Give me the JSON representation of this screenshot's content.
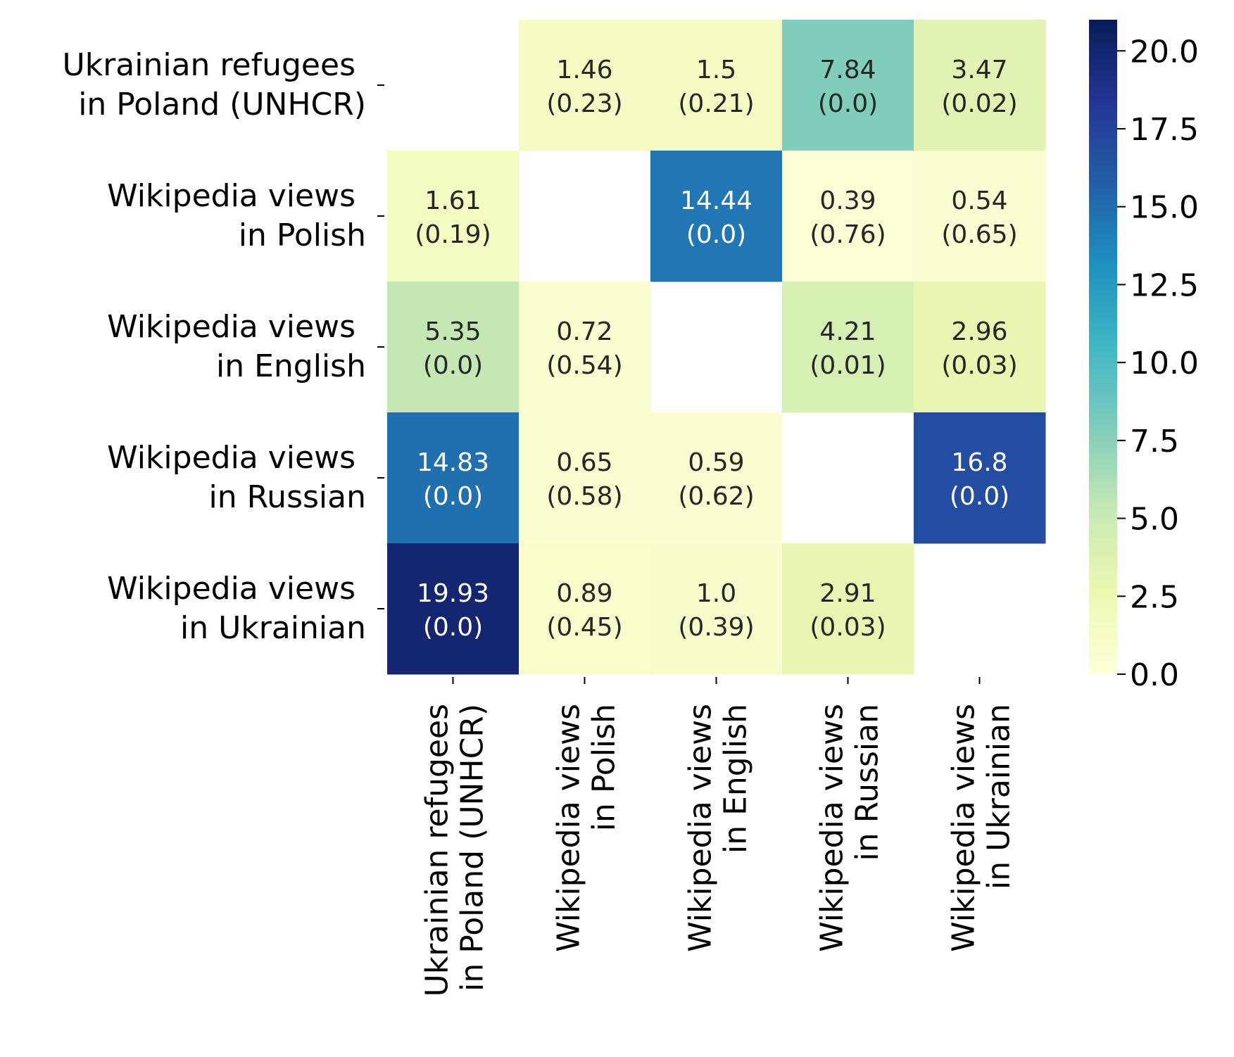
{
  "chart_data": {
    "type": "heatmap",
    "title": "",
    "xlabel": "",
    "ylabel": "",
    "rows": [
      [
        "Ukrainian refugees",
        "in Poland (UNHCR)"
      ],
      [
        "Wikipedia views",
        "in Polish"
      ],
      [
        "Wikipedia views",
        "in English"
      ],
      [
        "Wikipedia views",
        "in Russian"
      ],
      [
        "Wikipedia views",
        "in Ukrainian"
      ]
    ],
    "columns": [
      [
        "Ukrainian refugees",
        "in Poland (UNHCR)"
      ],
      [
        "Wikipedia views",
        "in Polish"
      ],
      [
        "Wikipedia views",
        "in English"
      ],
      [
        "Wikipedia views",
        "in Russian"
      ],
      [
        "Wikipedia views",
        "in Ukrainian"
      ]
    ],
    "values": [
      [
        null,
        1.46,
        1.5,
        7.84,
        3.47
      ],
      [
        1.61,
        null,
        14.44,
        0.39,
        0.54
      ],
      [
        5.35,
        0.72,
        null,
        4.21,
        2.96
      ],
      [
        14.83,
        0.65,
        0.59,
        null,
        16.8
      ],
      [
        19.93,
        0.89,
        1.0,
        2.91,
        null
      ]
    ],
    "p_values": [
      [
        null,
        "0.23",
        "0.21",
        "0.0",
        "0.02"
      ],
      [
        "0.19",
        null,
        "0.0",
        "0.76",
        "0.65"
      ],
      [
        "0.0",
        "0.54",
        null,
        "0.01",
        "0.03"
      ],
      [
        "0.0",
        "0.58",
        "0.62",
        null,
        "0.0"
      ],
      [
        "0.0",
        "0.45",
        "0.39",
        "0.03",
        null
      ]
    ],
    "value_labels": [
      [
        null,
        "1.46",
        "1.5",
        "7.84",
        "3.47"
      ],
      [
        "1.61",
        null,
        "14.44",
        "0.39",
        "0.54"
      ],
      [
        "5.35",
        "0.72",
        null,
        "4.21",
        "2.96"
      ],
      [
        "14.83",
        "0.65",
        "0.59",
        null,
        "16.8"
      ],
      [
        "19.93",
        "0.89",
        "1.0",
        "2.91",
        null
      ]
    ],
    "colorbar": {
      "range": [
        0,
        21
      ],
      "ticks": [
        "0.0",
        "2.5",
        "5.0",
        "7.5",
        "10.0",
        "12.5",
        "15.0",
        "17.5",
        "20.0"
      ],
      "colormap": "YlGnBu"
    }
  }
}
